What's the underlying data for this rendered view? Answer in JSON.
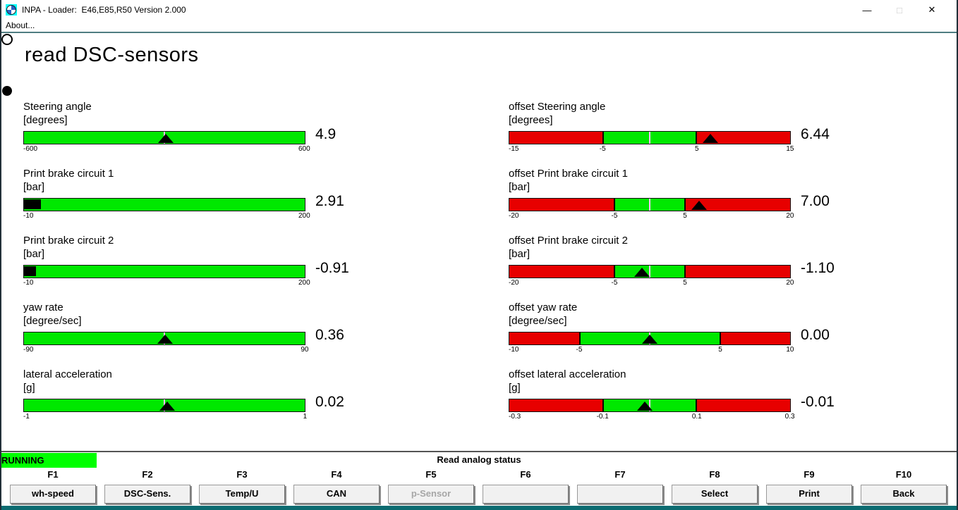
{
  "window": {
    "title": "INPA - Loader:  E46,E85,R50 Version 2.000",
    "icon": "bmw-roundel",
    "controls": {
      "minimize": "—",
      "maximize": "□",
      "close": "✕"
    }
  },
  "menu": {
    "about": "About..."
  },
  "main": {
    "title": "read DSC-sensors"
  },
  "indicators": {
    "top_circle": "open",
    "bottom_circle": "filled"
  },
  "colors": {
    "gauge_green": "#00e800",
    "gauge_red": "#e70000",
    "marker_black": "#000000",
    "center_line_pink": "#ffc2ff",
    "running_green": "#00ff00",
    "window_edge_teal": "#0c6b70"
  },
  "gauges": {
    "left_column": [
      {
        "label": "Steering angle",
        "unit": "[degrees]",
        "value": "4.9",
        "style": "triangle",
        "marker_pct": 50.4,
        "scale": [
          {
            "text": "-600",
            "pct": 0
          },
          {
            "text": "600",
            "pct": 100
          }
        ]
      },
      {
        "label": "Print brake circuit 1",
        "unit": "[bar]",
        "value": "2.91",
        "style": "fill",
        "fill_pct": 6.1,
        "scale": [
          {
            "text": "-10",
            "pct": 0
          },
          {
            "text": "200",
            "pct": 100
          }
        ]
      },
      {
        "label": "Print brake circuit 2",
        "unit": "[bar]",
        "value": "-0.91",
        "style": "fill",
        "fill_pct": 4.3,
        "scale": [
          {
            "text": "-10",
            "pct": 0
          },
          {
            "text": "200",
            "pct": 100
          }
        ]
      },
      {
        "label": "yaw rate",
        "unit": "[degree/sec]",
        "value": "0.36",
        "style": "triangle",
        "marker_pct": 50.2,
        "scale": [
          {
            "text": "-90",
            "pct": 0
          },
          {
            "text": "90",
            "pct": 100
          }
        ]
      },
      {
        "label": "lateral acceleration",
        "unit": "[g]",
        "value": "0.02",
        "style": "triangle",
        "marker_pct": 51.0,
        "scale": [
          {
            "text": "-1",
            "pct": 0
          },
          {
            "text": "1",
            "pct": 100
          }
        ]
      }
    ],
    "right_column": [
      {
        "label": "offset Steering angle",
        "unit": "[degrees]",
        "value": "6.44",
        "style": "zones",
        "green_from_pct": 33.3,
        "green_to_pct": 66.7,
        "marker_pct": 71.5,
        "scale": [
          {
            "text": "-15",
            "pct": 0
          },
          {
            "text": "-5",
            "pct": 33.3
          },
          {
            "text": "5",
            "pct": 66.7
          },
          {
            "text": "15",
            "pct": 100
          }
        ]
      },
      {
        "label": "offset Print brake circuit 1",
        "unit": "[bar]",
        "value": "7.00",
        "style": "zones",
        "green_from_pct": 37.5,
        "green_to_pct": 62.5,
        "marker_pct": 67.5,
        "scale": [
          {
            "text": "-20",
            "pct": 0
          },
          {
            "text": "-5",
            "pct": 37.5
          },
          {
            "text": "5",
            "pct": 62.5
          },
          {
            "text": "20",
            "pct": 100
          }
        ]
      },
      {
        "label": "offset Print brake circuit 2",
        "unit": "[bar]",
        "value": "-1.10",
        "style": "zones",
        "green_from_pct": 37.5,
        "green_to_pct": 62.5,
        "marker_pct": 47.3,
        "scale": [
          {
            "text": "-20",
            "pct": 0
          },
          {
            "text": "-5",
            "pct": 37.5
          },
          {
            "text": "5",
            "pct": 62.5
          },
          {
            "text": "20",
            "pct": 100
          }
        ]
      },
      {
        "label": "offset yaw rate",
        "unit": "[degree/sec]",
        "value": "0.00",
        "style": "zones",
        "green_from_pct": 25.0,
        "green_to_pct": 75.0,
        "marker_pct": 50.0,
        "scale": [
          {
            "text": "-10",
            "pct": 0
          },
          {
            "text": "-5",
            "pct": 25
          },
          {
            "text": "5",
            "pct": 75
          },
          {
            "text": "10",
            "pct": 100
          }
        ]
      },
      {
        "label": "offset lateral acceleration",
        "unit": "[g]",
        "value": "-0.01",
        "style": "zones",
        "green_from_pct": 33.3,
        "green_to_pct": 66.7,
        "marker_pct": 48.3,
        "scale": [
          {
            "text": "-0.3",
            "pct": 0
          },
          {
            "text": "-0.1",
            "pct": 33.3
          },
          {
            "text": "0.1",
            "pct": 66.7
          },
          {
            "text": "0.3",
            "pct": 100
          }
        ]
      }
    ]
  },
  "status": {
    "state": "RUNNING",
    "message": "Read analog status"
  },
  "function_keys": [
    {
      "key": "F1",
      "label": "wh-speed",
      "enabled": true
    },
    {
      "key": "F2",
      "label": "DSC-Sens.",
      "enabled": true
    },
    {
      "key": "F3",
      "label": "Temp/U",
      "enabled": true
    },
    {
      "key": "F4",
      "label": "CAN",
      "enabled": true
    },
    {
      "key": "F5",
      "label": "p-Sensor",
      "enabled": false
    },
    {
      "key": "F6",
      "label": "",
      "enabled": true
    },
    {
      "key": "F7",
      "label": "",
      "enabled": true
    },
    {
      "key": "F8",
      "label": "Select",
      "enabled": true
    },
    {
      "key": "F9",
      "label": "Print",
      "enabled": true
    },
    {
      "key": "F10",
      "label": "Back",
      "enabled": true
    }
  ]
}
